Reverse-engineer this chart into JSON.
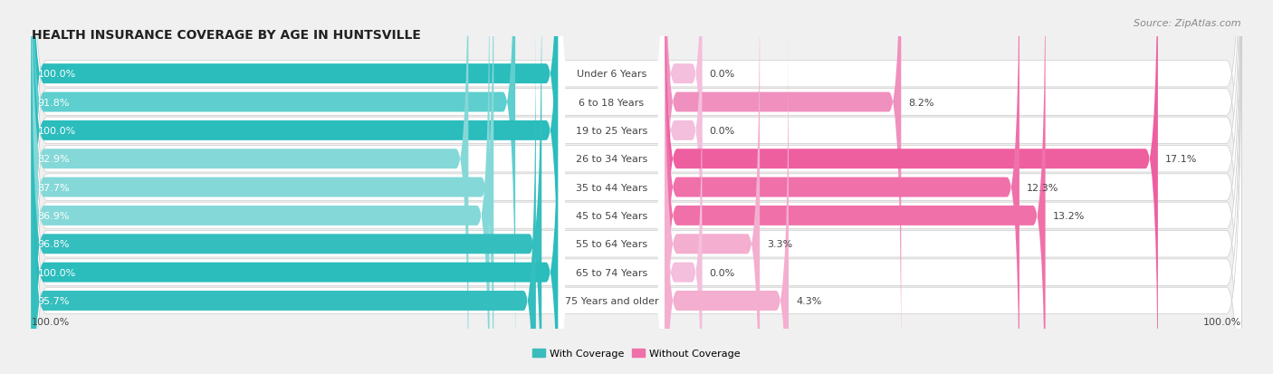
{
  "title": "HEALTH INSURANCE COVERAGE BY AGE IN HUNTSVILLE",
  "source": "Source: ZipAtlas.com",
  "categories": [
    "Under 6 Years",
    "6 to 18 Years",
    "19 to 25 Years",
    "26 to 34 Years",
    "35 to 44 Years",
    "45 to 54 Years",
    "55 to 64 Years",
    "65 to 74 Years",
    "75 Years and older"
  ],
  "with_coverage": [
    100.0,
    91.8,
    100.0,
    82.9,
    87.7,
    86.9,
    96.8,
    100.0,
    95.7
  ],
  "without_coverage": [
    0.0,
    8.2,
    0.0,
    17.1,
    12.3,
    13.2,
    3.3,
    0.0,
    4.3
  ],
  "color_with": "#3BBCBC",
  "color_with_light": "#7DD4D4",
  "color_without_strong": "#F0669A",
  "color_without_light": "#F4A0BE",
  "bg_color": "#f0f0f0",
  "row_bg_color": "#ffffff",
  "title_fontsize": 10,
  "label_fontsize": 8,
  "pct_fontsize": 8,
  "source_fontsize": 8
}
